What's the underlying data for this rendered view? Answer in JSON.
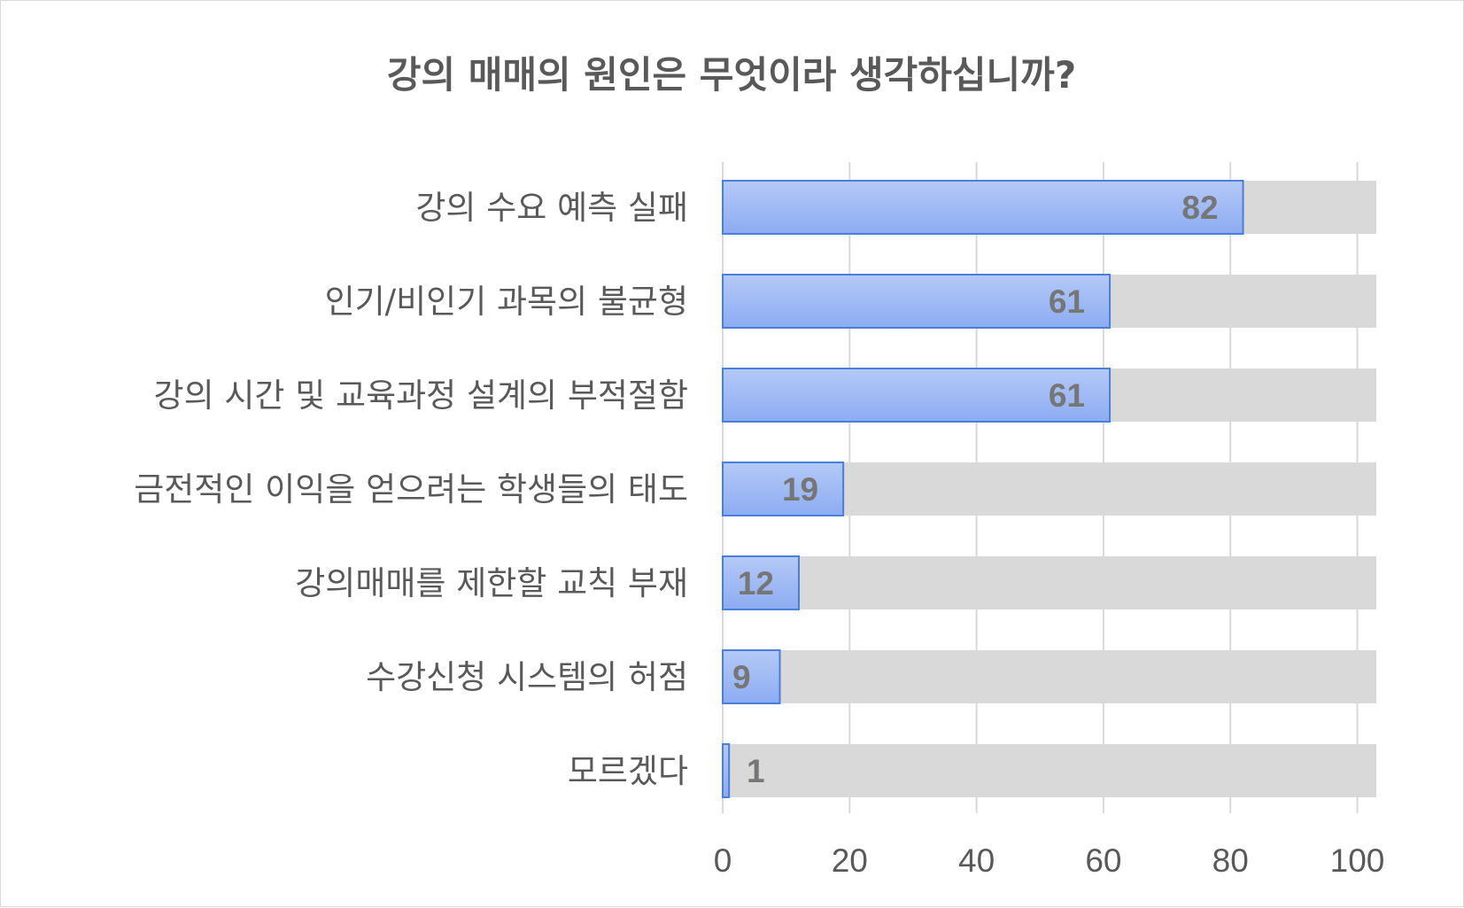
{
  "chart_data": {
    "type": "bar",
    "orientation": "horizontal",
    "title": "강의 매매의 원인은 무엇이라 생각하십니까?",
    "categories": [
      "강의 수요 예측 실패",
      "인기/비인기 과목의 불균형",
      "강의 시간 및 교육과정 설계의 부적절함",
      "금전적인 이익을 얻으려는 학생들의 태도",
      "강의매매를 제한할 교칙 부재",
      "수강신청 시스템의 허점",
      "모르겠다"
    ],
    "values": [
      82,
      61,
      61,
      19,
      12,
      9,
      1
    ],
    "data_labels": [
      "82",
      "61",
      "61",
      "19",
      "12",
      "9",
      "1"
    ],
    "xlim": [
      0,
      103
    ],
    "x_ticks": [
      0,
      20,
      40,
      60,
      80,
      100
    ],
    "x_tick_labels": [
      "0",
      "20",
      "40",
      "60",
      "80",
      "100"
    ],
    "background_bar_value": 103,
    "grid": true,
    "legend": "none",
    "colors": {
      "bar_fill_top": "#b4c9f7",
      "bar_fill_bottom": "#8cacf2",
      "bar_stroke": "#4a7fd9",
      "background_bar": "#d9d9d9",
      "grid": "#d9d9d9",
      "text": "#595959",
      "data_label": "#767676"
    }
  }
}
